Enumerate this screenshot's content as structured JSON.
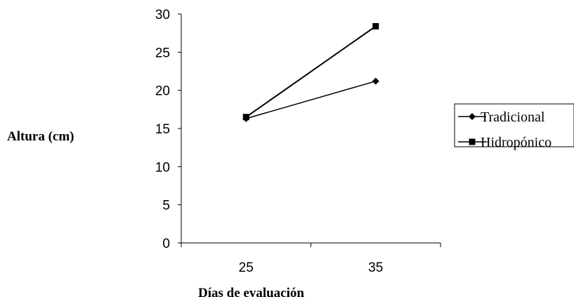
{
  "chart_data": {
    "type": "line",
    "title": "",
    "xlabel": "Días de evaluación",
    "ylabel": "Altura (cm)",
    "categories": [
      "25",
      "35"
    ],
    "ylim": [
      0,
      30
    ],
    "yticks": [
      0,
      5,
      10,
      15,
      20,
      25,
      30
    ],
    "grid": false,
    "legend_position": "right",
    "series": [
      {
        "name": "Tradicional",
        "marker": "diamond",
        "color": "#000000",
        "values": [
          16.3,
          21.2
        ]
      },
      {
        "name": "Hidropónico",
        "marker": "square",
        "color": "#000000",
        "values": [
          16.5,
          28.4
        ]
      }
    ]
  }
}
